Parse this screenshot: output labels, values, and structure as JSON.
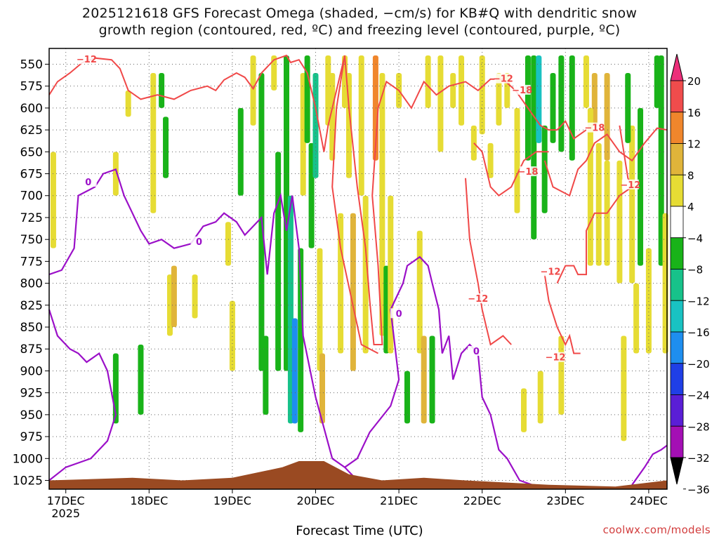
{
  "title_line1": "2025121618 GFS Forecast Omega (shaded, −cm/s) for KB#Q with dendritic snow",
  "title_line2": "growth region (contoured, red, ºC) and freezing level (contoured, purple, ºC)",
  "xlabel": "Forecast Time (UTC)",
  "credit": "coolwx.com/models",
  "chart_data": {
    "type": "heatmap",
    "x_ticks": [
      {
        "label": "17DEC",
        "sub": "2025",
        "t": 0.2
      },
      {
        "label": "18DEC",
        "sub": "",
        "t": 1.2
      },
      {
        "label": "19DEC",
        "sub": "",
        "t": 2.2
      },
      {
        "label": "20DEC",
        "sub": "",
        "t": 3.2
      },
      {
        "label": "21DEC",
        "sub": "",
        "t": 4.2
      },
      {
        "label": "22DEC",
        "sub": "",
        "t": 5.2
      },
      {
        "label": "23DEC",
        "sub": "",
        "t": 6.2
      },
      {
        "label": "24DEC",
        "sub": "",
        "t": 7.2
      }
    ],
    "x_range": [
      0,
      7.42
    ],
    "y_ticks": [
      "550",
      "575",
      "600",
      "625",
      "650",
      "675",
      "700",
      "725",
      "750",
      "775",
      "800",
      "825",
      "850",
      "875",
      "900",
      "925",
      "950",
      "975",
      "1000",
      "1025"
    ],
    "y_range": [
      532,
      1035
    ],
    "y_scale": "linear (pressure, hPa, inverted)",
    "colorbar": {
      "labels": [
        "20",
        "16",
        "12",
        "8",
        "4",
        "−4",
        "−8",
        "−12",
        "−16",
        "−20",
        "−24",
        "−28",
        "−32",
        "−36"
      ],
      "colors": [
        "#ec2f7a",
        "#f04c4c",
        "#f0862c",
        "#e0b43a",
        "#e6dc34",
        "#ffffff",
        "#19b319",
        "#17c28a",
        "#19c2c2",
        "#1e8eef",
        "#1f3fe6",
        "#5a1ed6",
        "#a40fb4",
        "#aaaaaa"
      ]
    },
    "series": [
      {
        "kind": "isotherm",
        "color": "#f04848",
        "labels": [
          "−12",
          "−18"
        ]
      },
      {
        "kind": "freezing_level",
        "color": "#9b10c8",
        "labels": [
          "0"
        ]
      }
    ],
    "contour_labels": [
      {
        "text": "−12",
        "t": 0.45,
        "p": 545,
        "color": "#f04848"
      },
      {
        "text": "−12",
        "t": 5.45,
        "p": 567,
        "color": "#f04848"
      },
      {
        "text": "−18",
        "t": 5.68,
        "p": 580,
        "color": "#f04848"
      },
      {
        "text": "−18",
        "t": 6.55,
        "p": 623,
        "color": "#f04848"
      },
      {
        "text": "−18",
        "t": 5.75,
        "p": 673,
        "color": "#f04848"
      },
      {
        "text": "−12",
        "t": 6.98,
        "p": 688,
        "color": "#f04848"
      },
      {
        "text": "−12",
        "t": 6.02,
        "p": 787,
        "color": "#f04848"
      },
      {
        "text": "−12",
        "t": 5.15,
        "p": 818,
        "color": "#f04848"
      },
      {
        "text": "−12",
        "t": 6.08,
        "p": 885,
        "color": "#f04848"
      },
      {
        "text": "0",
        "t": 0.47,
        "p": 685,
        "color": "#9b10c8"
      },
      {
        "text": "0",
        "t": 1.8,
        "p": 753,
        "color": "#9b10c8"
      },
      {
        "text": "0",
        "t": 4.2,
        "p": 835,
        "color": "#9b10c8"
      },
      {
        "text": "0",
        "t": 5.13,
        "p": 878,
        "color": "#9b10c8"
      }
    ],
    "shaded": [
      {
        "t": 0.05,
        "p1": 650,
        "p2": 760,
        "v": 4
      },
      {
        "t": 0.8,
        "p1": 650,
        "p2": 700,
        "v": 4
      },
      {
        "t": 0.95,
        "p1": 580,
        "p2": 610,
        "v": 4
      },
      {
        "t": 1.25,
        "p1": 560,
        "p2": 720,
        "v": 4
      },
      {
        "t": 1.35,
        "p1": 560,
        "p2": 600,
        "v": -6
      },
      {
        "t": 1.4,
        "p1": 610,
        "p2": 680,
        "v": -6
      },
      {
        "t": 0.8,
        "p1": 880,
        "p2": 960,
        "v": -6
      },
      {
        "t": 1.1,
        "p1": 870,
        "p2": 950,
        "v": -6
      },
      {
        "t": 1.45,
        "p1": 790,
        "p2": 860,
        "v": 4
      },
      {
        "t": 1.5,
        "p1": 780,
        "p2": 850,
        "v": 8
      },
      {
        "t": 1.75,
        "p1": 790,
        "p2": 840,
        "v": 4
      },
      {
        "t": 2.15,
        "p1": 730,
        "p2": 780,
        "v": 4
      },
      {
        "t": 2.2,
        "p1": 820,
        "p2": 900,
        "v": 4
      },
      {
        "t": 2.3,
        "p1": 600,
        "p2": 700,
        "v": -6
      },
      {
        "t": 2.45,
        "p1": 540,
        "p2": 620,
        "v": 4
      },
      {
        "t": 2.55,
        "p1": 560,
        "p2": 900,
        "v": -6
      },
      {
        "t": 2.6,
        "p1": 860,
        "p2": 950,
        "v": -6
      },
      {
        "t": 2.7,
        "p1": 540,
        "p2": 580,
        "v": 4
      },
      {
        "t": 2.75,
        "p1": 650,
        "p2": 900,
        "v": -6
      },
      {
        "t": 2.85,
        "p1": 540,
        "p2": 900,
        "v": -6
      },
      {
        "t": 2.9,
        "p1": 700,
        "p2": 960,
        "v": -10
      },
      {
        "t": 2.95,
        "p1": 840,
        "p2": 960,
        "v": -18
      },
      {
        "t": 3.02,
        "p1": 760,
        "p2": 970,
        "v": -6
      },
      {
        "t": 3.05,
        "p1": 560,
        "p2": 700,
        "v": 4
      },
      {
        "t": 3.1,
        "p1": 540,
        "p2": 640,
        "v": -6
      },
      {
        "t": 3.15,
        "p1": 640,
        "p2": 760,
        "v": -6
      },
      {
        "t": 3.2,
        "p1": 560,
        "p2": 680,
        "v": -10
      },
      {
        "t": 3.25,
        "p1": 760,
        "p2": 900,
        "v": 4
      },
      {
        "t": 3.28,
        "p1": 880,
        "p2": 960,
        "v": 8
      },
      {
        "t": 3.35,
        "p1": 540,
        "p2": 620,
        "v": 4
      },
      {
        "t": 3.4,
        "p1": 560,
        "p2": 660,
        "v": 4
      },
      {
        "t": 3.5,
        "p1": 720,
        "p2": 880,
        "v": 4
      },
      {
        "t": 3.55,
        "p1": 540,
        "p2": 600,
        "v": 4
      },
      {
        "t": 3.6,
        "p1": 560,
        "p2": 680,
        "v": 4
      },
      {
        "t": 3.65,
        "p1": 720,
        "p2": 900,
        "v": 8
      },
      {
        "t": 3.75,
        "p1": 540,
        "p2": 700,
        "v": 4
      },
      {
        "t": 3.8,
        "p1": 700,
        "p2": 880,
        "v": 4
      },
      {
        "t": 3.92,
        "p1": 540,
        "p2": 660,
        "v": 12
      },
      {
        "t": 4.0,
        "p1": 560,
        "p2": 860,
        "v": 4
      },
      {
        "t": 4.05,
        "p1": 780,
        "p2": 880,
        "v": -6
      },
      {
        "t": 4.1,
        "p1": 700,
        "p2": 880,
        "v": 4
      },
      {
        "t": 4.2,
        "p1": 560,
        "p2": 600,
        "v": 4
      },
      {
        "t": 4.3,
        "p1": 900,
        "p2": 960,
        "v": -6
      },
      {
        "t": 4.45,
        "p1": 740,
        "p2": 880,
        "v": 4
      },
      {
        "t": 4.5,
        "p1": 860,
        "p2": 960,
        "v": 8
      },
      {
        "t": 4.55,
        "p1": 540,
        "p2": 600,
        "v": 4
      },
      {
        "t": 4.6,
        "p1": 860,
        "p2": 960,
        "v": -6
      },
      {
        "t": 4.7,
        "p1": 540,
        "p2": 650,
        "v": 4
      },
      {
        "t": 4.85,
        "p1": 560,
        "p2": 600,
        "v": 4
      },
      {
        "t": 4.95,
        "p1": 540,
        "p2": 620,
        "v": 4
      },
      {
        "t": 5.1,
        "p1": 620,
        "p2": 660,
        "v": 4
      },
      {
        "t": 5.2,
        "p1": 540,
        "p2": 630,
        "v": 4
      },
      {
        "t": 5.3,
        "p1": 640,
        "p2": 680,
        "v": 4
      },
      {
        "t": 5.4,
        "p1": 560,
        "p2": 620,
        "v": 4
      },
      {
        "t": 5.5,
        "p1": 560,
        "p2": 600,
        "v": 4
      },
      {
        "t": 5.62,
        "p1": 600,
        "p2": 720,
        "v": 4
      },
      {
        "t": 5.75,
        "p1": 540,
        "p2": 660,
        "v": -6
      },
      {
        "t": 5.82,
        "p1": 540,
        "p2": 750,
        "v": -6
      },
      {
        "t": 5.88,
        "p1": 540,
        "p2": 640,
        "v": -14
      },
      {
        "t": 5.95,
        "p1": 620,
        "p2": 720,
        "v": -6
      },
      {
        "t": 6.05,
        "p1": 560,
        "p2": 640,
        "v": -6
      },
      {
        "t": 6.15,
        "p1": 540,
        "p2": 650,
        "v": -6
      },
      {
        "t": 6.28,
        "p1": 540,
        "p2": 660,
        "v": -6
      },
      {
        "t": 6.45,
        "p1": 540,
        "p2": 600,
        "v": 4
      },
      {
        "t": 6.55,
        "p1": 560,
        "p2": 620,
        "v": 8
      },
      {
        "t": 6.7,
        "p1": 560,
        "p2": 660,
        "v": 8
      },
      {
        "t": 6.5,
        "p1": 600,
        "p2": 780,
        "v": 4
      },
      {
        "t": 6.6,
        "p1": 640,
        "p2": 780,
        "v": 4
      },
      {
        "t": 6.7,
        "p1": 660,
        "p2": 780,
        "v": 4
      },
      {
        "t": 6.85,
        "p1": 660,
        "p2": 800,
        "v": 4
      },
      {
        "t": 7.0,
        "p1": 620,
        "p2": 800,
        "v": 4
      },
      {
        "t": 7.1,
        "p1": 600,
        "p2": 780,
        "v": -6
      },
      {
        "t": 6.95,
        "p1": 560,
        "p2": 640,
        "v": -6
      },
      {
        "t": 7.3,
        "p1": 540,
        "p2": 600,
        "v": -6
      },
      {
        "t": 7.35,
        "p1": 540,
        "p2": 780,
        "v": -6
      },
      {
        "t": 7.05,
        "p1": 800,
        "p2": 880,
        "v": 4
      },
      {
        "t": 7.2,
        "p1": 760,
        "p2": 880,
        "v": 4
      },
      {
        "t": 7.4,
        "p1": 720,
        "p2": 880,
        "v": 4
      },
      {
        "t": 6.9,
        "p1": 860,
        "p2": 980,
        "v": 4
      },
      {
        "t": 6.15,
        "p1": 860,
        "p2": 950,
        "v": 4
      },
      {
        "t": 5.9,
        "p1": 900,
        "p2": 960,
        "v": 4
      },
      {
        "t": 5.7,
        "p1": 920,
        "p2": 970,
        "v": 4
      }
    ]
  }
}
